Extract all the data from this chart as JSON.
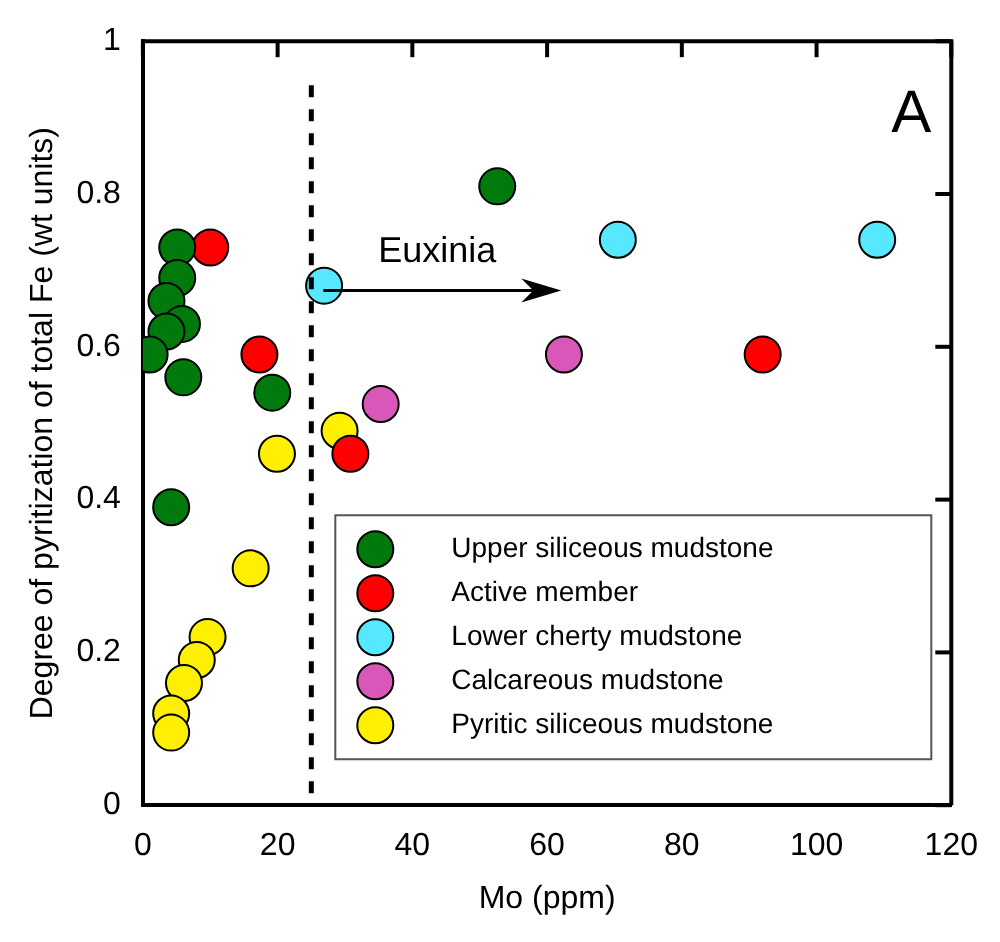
{
  "chart_data": {
    "type": "scatter",
    "xlabel": "Mo (ppm)",
    "ylabel": "Degree of pyritization of total Fe (wt units)",
    "xlim": [
      0,
      120
    ],
    "xticks": [
      0,
      20,
      40,
      60,
      80,
      100,
      120
    ],
    "ylim": [
      0,
      1
    ],
    "yticks": [
      0,
      0.2,
      0.4,
      0.6,
      0.8,
      1
    ],
    "grid": false,
    "legend": "bottom right",
    "marker": "circle",
    "series": [
      {
        "name": "Upper siliceous mudstone",
        "color": "#007a0c",
        "x": [
          52.6,
          5.1,
          5.1,
          3.5,
          5.8,
          3.5,
          1,
          6,
          19.2,
          4.2
        ],
        "values": [
          0.81,
          0.73,
          0.69,
          0.66,
          0.63,
          0.62,
          0.59,
          0.56,
          0.54,
          0.39
        ]
      },
      {
        "name": "Active member",
        "color": "#ff0000",
        "x": [
          10,
          17.3,
          30.8,
          92
        ],
        "values": [
          0.73,
          0.59,
          0.46,
          0.59
        ]
      },
      {
        "name": "Lower cherty mudstone",
        "color": "#55e8ff",
        "x": [
          26.9,
          70.5,
          109
        ],
        "values": [
          0.68,
          0.74,
          0.74
        ]
      },
      {
        "name": "Calcareous mudstone",
        "color": "#d957b8",
        "x": [
          35.3,
          62.5
        ],
        "values": [
          0.525,
          0.59
        ]
      },
      {
        "name": "Pyritic siliceous mudstone",
        "color": "#ffef00",
        "x": [
          29.2,
          19.9,
          16,
          9.6,
          8,
          6.1,
          4.2,
          4.2
        ],
        "values": [
          0.49,
          0.46,
          0.31,
          0.22,
          0.19,
          0.16,
          0.12,
          0.095
        ]
      }
    ],
    "ref_lines": [
      {
        "axis": "x",
        "value": 25,
        "line_style": "dashed",
        "color": "#000000"
      }
    ],
    "annotations": [
      "Euxinia",
      "A"
    ]
  }
}
